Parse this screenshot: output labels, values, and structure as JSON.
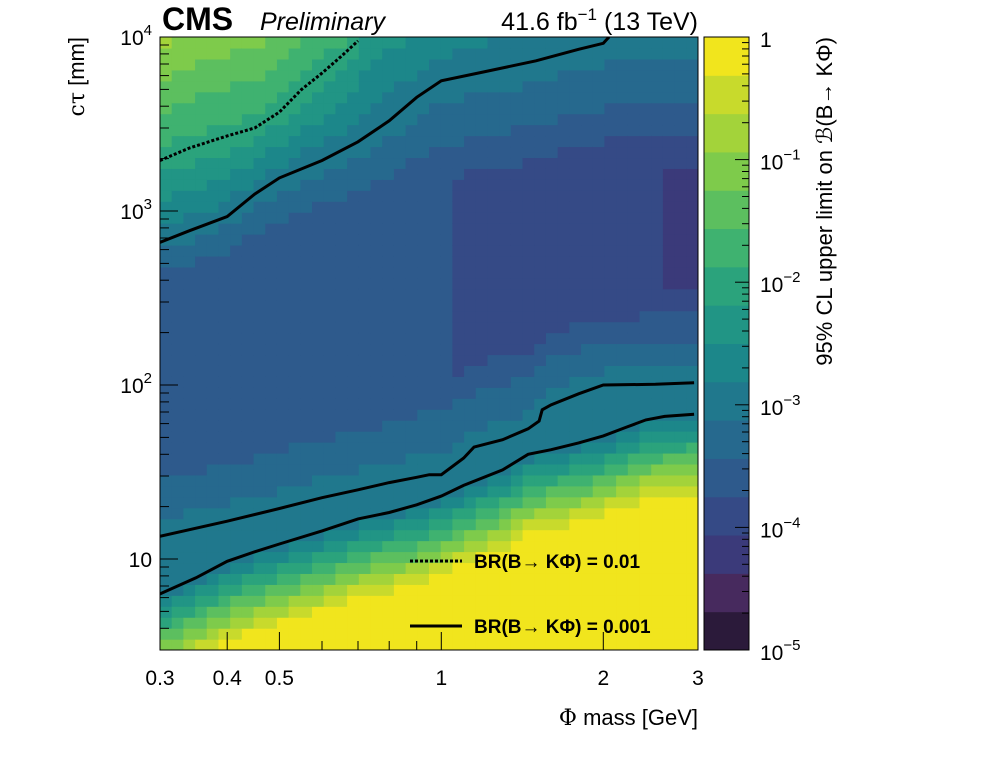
{
  "header": {
    "experiment": "CMS",
    "status": "Preliminary",
    "luminosity": "41.6 fb",
    "lumi_exponent": "−1",
    "energy": " (13 TeV)"
  },
  "chart_data": {
    "type": "heatmap",
    "xlabel_symbol": "Φ",
    "xlabel": " mass [GeV]",
    "ylabel_symbol": "cτ",
    "ylabel": " [mm]",
    "x_scale": "log",
    "y_scale": "log",
    "xlim": [
      0.3,
      3
    ],
    "ylim": [
      3,
      10000
    ],
    "x_ticks": [
      {
        "value": 0.3,
        "label": "0.3"
      },
      {
        "value": 0.4,
        "label": "0.4"
      },
      {
        "value": 0.5,
        "label": "0.5"
      },
      {
        "value": 1,
        "label": "1"
      },
      {
        "value": 2,
        "label": "2"
      },
      {
        "value": 3,
        "label": "3"
      }
    ],
    "y_ticks": [
      {
        "value": 10,
        "label": "10",
        "exp": ""
      },
      {
        "value": 100,
        "label": "10",
        "exp": "2"
      },
      {
        "value": 1000,
        "label": "10",
        "exp": "3"
      },
      {
        "value": 10000,
        "label": "10",
        "exp": "4"
      }
    ],
    "colorbar": {
      "title": "95% CL upper limit on ℬ(B→ KΦ)",
      "scale": "log",
      "range": [
        1e-05,
        1
      ],
      "ticks": [
        {
          "value": 1,
          "label": "1",
          "exp": ""
        },
        {
          "value": 0.1,
          "label": "10",
          "exp": "−1"
        },
        {
          "value": 0.01,
          "label": "10",
          "exp": "−2"
        },
        {
          "value": 0.001,
          "label": "10",
          "exp": "−3"
        },
        {
          "value": 0.0001,
          "label": "10",
          "exp": "−4"
        },
        {
          "value": 1e-05,
          "label": "10",
          "exp": "−5"
        }
      ],
      "colors": [
        "#2b1a3a",
        "#472a5e",
        "#3b3a7a",
        "#354a86",
        "#2e5a8c",
        "#26698e",
        "#20788d",
        "#1c878a",
        "#219585",
        "#2ba37c",
        "#3fb270",
        "#5cbf5f",
        "#7ecb4b",
        "#a3d33a",
        "#c8da2c",
        "#f1e51d"
      ]
    },
    "series": [
      {
        "name": "BR(B→ KΦ) = 0.01",
        "style": "dotted",
        "points": [
          [
            0.3,
            1950
          ],
          [
            0.34,
            2300
          ],
          [
            0.4,
            2700
          ],
          [
            0.45,
            3000
          ],
          [
            0.5,
            3700
          ],
          [
            0.55,
            5000
          ],
          [
            0.6,
            6200
          ],
          [
            0.65,
            7700
          ],
          [
            0.7,
            9500
          ]
        ]
      },
      {
        "name": "BR(B→ KΦ) = 0.001",
        "style": "solid",
        "points": [
          [
            0.3,
            660
          ],
          [
            0.34,
            770
          ],
          [
            0.4,
            930
          ],
          [
            0.45,
            1250
          ],
          [
            0.5,
            1550
          ],
          [
            0.6,
            1950
          ],
          [
            0.7,
            2500
          ],
          [
            0.8,
            3300
          ],
          [
            0.9,
            4500
          ],
          [
            1.0,
            5600
          ],
          [
            1.2,
            6300
          ],
          [
            1.5,
            7300
          ],
          [
            1.8,
            8500
          ],
          [
            2.0,
            9200
          ],
          [
            2.05,
            10000
          ]
        ]
      },
      {
        "name": "",
        "style": "solid",
        "points": [
          [
            0.3,
            13.5
          ],
          [
            0.4,
            16.5
          ],
          [
            0.5,
            19.5
          ],
          [
            0.6,
            22.5
          ],
          [
            0.7,
            25
          ],
          [
            0.8,
            27.5
          ],
          [
            0.9,
            29.5
          ],
          [
            0.95,
            30.5
          ],
          [
            1.0,
            30.5
          ],
          [
            1.1,
            38
          ],
          [
            1.15,
            44
          ],
          [
            1.3,
            48.5
          ],
          [
            1.45,
            56
          ],
          [
            1.52,
            62
          ],
          [
            1.54,
            72
          ],
          [
            1.6,
            77
          ],
          [
            1.8,
            89
          ],
          [
            2.0,
            100
          ],
          [
            2.5,
            101
          ],
          [
            2.95,
            103
          ]
        ]
      },
      {
        "name": "",
        "style": "solid",
        "points": [
          [
            0.3,
            6.3
          ],
          [
            0.35,
            7.8
          ],
          [
            0.4,
            9.7
          ],
          [
            0.45,
            11
          ],
          [
            0.5,
            12.2
          ],
          [
            0.6,
            14.5
          ],
          [
            0.7,
            17
          ],
          [
            0.8,
            18.5
          ],
          [
            0.9,
            20.5
          ],
          [
            1.0,
            23
          ],
          [
            1.1,
            26.5
          ],
          [
            1.3,
            32.5
          ],
          [
            1.45,
            40
          ],
          [
            1.6,
            42.5
          ],
          [
            1.8,
            46.5
          ],
          [
            2.0,
            51
          ],
          [
            2.2,
            57
          ],
          [
            2.4,
            63
          ],
          [
            2.6,
            66
          ],
          [
            2.95,
            68
          ]
        ]
      }
    ],
    "legend": {
      "placement": "bottom-right",
      "entries": [
        {
          "label": "BR(B→ KΦ) = 0.01",
          "style": "dotted"
        },
        {
          "label": "BR(B→ KΦ) = 0.001",
          "style": "solid"
        }
      ]
    }
  }
}
